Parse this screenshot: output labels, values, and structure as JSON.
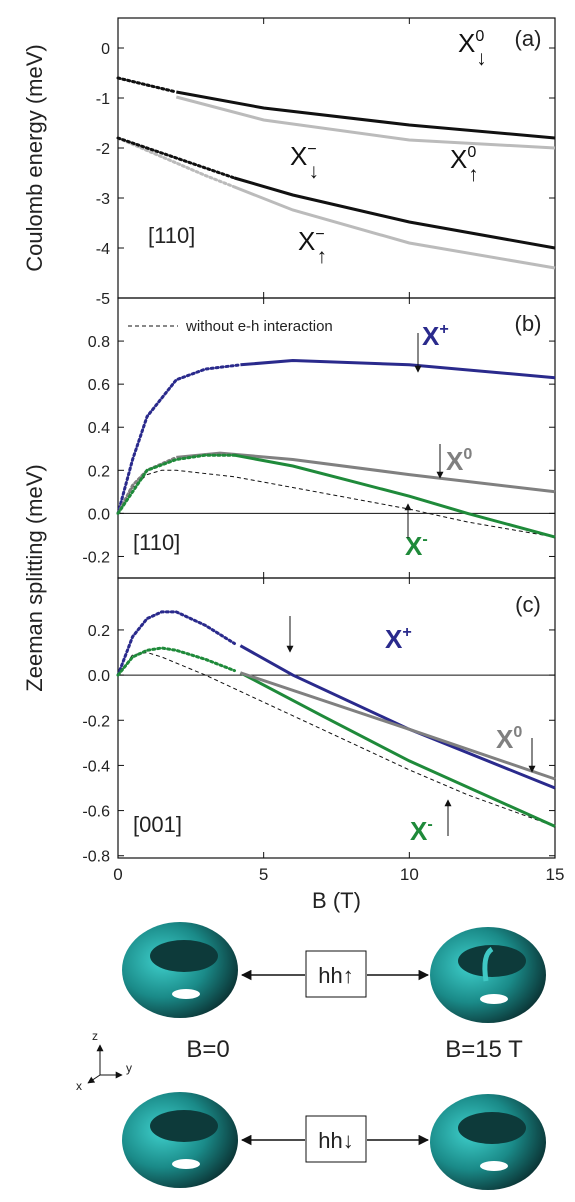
{
  "chart_data": [
    {
      "type": "line",
      "ylabel": "Coulomb energy (meV)",
      "panel_label": "(a)",
      "direction": "[110]",
      "xlim": [
        0,
        15
      ],
      "xticks": [
        0,
        5,
        10,
        15
      ],
      "show_xtick_labels": false,
      "ylim": [
        -5,
        0.6
      ],
      "yticks": [
        0,
        -1,
        -2,
        -3,
        -4,
        -5
      ],
      "series": [
        {
          "color": "#bbbbbb",
          "dash": "dot",
          "x": [
            0,
            1,
            2
          ],
          "values": [
            -0.6,
            -0.74,
            -0.88
          ]
        },
        {
          "color": "#bbbbbb",
          "dash": "solid",
          "x": [
            2,
            5,
            10,
            15
          ],
          "values": [
            -0.98,
            -1.44,
            -1.84,
            -2.0
          ]
        },
        {
          "color": "#111111",
          "dash": "dot",
          "x": [
            0,
            1,
            2
          ],
          "values": [
            -0.6,
            -0.74,
            -0.88
          ]
        },
        {
          "color": "#111111",
          "dash": "solid",
          "x": [
            2,
            5,
            10,
            15
          ],
          "values": [
            -0.88,
            -1.2,
            -1.54,
            -1.8
          ]
        },
        {
          "color": "#bbbbbb",
          "dash": "dot",
          "x": [
            0,
            1,
            2,
            3,
            4
          ],
          "values": [
            -1.8,
            -2.05,
            -2.3,
            -2.55,
            -2.78
          ]
        },
        {
          "color": "#bbbbbb",
          "dash": "solid",
          "x": [
            4,
            6,
            10,
            15
          ],
          "values": [
            -2.78,
            -3.24,
            -3.9,
            -4.4
          ]
        },
        {
          "color": "#111111",
          "dash": "dot",
          "x": [
            0,
            1,
            2,
            3,
            4
          ],
          "values": [
            -1.8,
            -2.0,
            -2.2,
            -2.4,
            -2.6
          ]
        },
        {
          "color": "#111111",
          "dash": "solid",
          "x": [
            4,
            6,
            10,
            15
          ],
          "values": [
            -2.6,
            -2.94,
            -3.48,
            -4.0
          ]
        }
      ],
      "annotations": [
        {
          "text": "X",
          "sup": "0",
          "sub": "↓",
          "color": "#111111"
        },
        {
          "text": "X",
          "sup": "−",
          "sub": "↓",
          "color": "#111111"
        },
        {
          "text": "X",
          "sup": "0",
          "sub": "↑",
          "color": "#111111"
        },
        {
          "text": "X",
          "sup": "−",
          "sub": "↑",
          "color": "#111111"
        }
      ]
    },
    {
      "type": "line",
      "ylabel": "Zeeman splitting (meV)",
      "panel_label": "(b)",
      "direction": "[110]",
      "xlim": [
        0,
        15
      ],
      "xticks": [
        0,
        5,
        10,
        15
      ],
      "show_xtick_labels": false,
      "ylim": [
        -0.3,
        1.0
      ],
      "yticks": [
        0.8,
        0.6,
        0.4,
        0.2,
        {
          "value": 0,
          "label": "0.0"
        },
        -0.2
      ],
      "hline": 0,
      "series": [
        {
          "name": "without e-h interaction",
          "color": "#111111",
          "dash": "dash",
          "x": [
            0,
            0.5,
            1,
            1.5,
            2,
            4,
            6,
            8,
            10,
            12,
            15
          ],
          "values": [
            0,
            0.12,
            0.18,
            0.2,
            0.2,
            0.17,
            0.12,
            0.07,
            0.02,
            -0.04,
            -0.11
          ]
        },
        {
          "color": "#2a2a8c",
          "dash": "dot",
          "x": [
            0,
            0.5,
            1,
            2,
            3,
            4.2
          ],
          "values": [
            0,
            0.25,
            0.45,
            0.62,
            0.67,
            0.69
          ]
        },
        {
          "color": "#2a2a8c",
          "dash": "solid",
          "x": [
            4.2,
            6,
            10,
            15
          ],
          "values": [
            0.69,
            0.71,
            0.69,
            0.63
          ]
        },
        {
          "color": "#808080",
          "dash": "dot",
          "x": [
            0,
            0.5,
            1,
            2
          ],
          "values": [
            0,
            0.13,
            0.2,
            0.26
          ]
        },
        {
          "color": "#808080",
          "dash": "solid",
          "x": [
            2,
            3.5,
            6,
            10,
            15
          ],
          "values": [
            0.26,
            0.28,
            0.25,
            0.18,
            0.1
          ]
        },
        {
          "color": "#1f8a3a",
          "dash": "dot",
          "x": [
            0,
            1,
            2,
            3,
            4
          ],
          "values": [
            0,
            0.2,
            0.25,
            0.27,
            0.27
          ]
        },
        {
          "color": "#1f8a3a",
          "dash": "solid",
          "x": [
            4,
            6,
            8,
            10,
            12,
            15
          ],
          "values": [
            0.27,
            0.22,
            0.15,
            0.08,
            0,
            -0.11
          ]
        }
      ],
      "annotations": [
        {
          "text": "X",
          "sup": "+",
          "color": "#2a2a8c"
        },
        {
          "text": "X",
          "sup": "0",
          "color": "#808080"
        },
        {
          "text": "X",
          "sup": "-",
          "color": "#1f8a3a"
        }
      ]
    },
    {
      "type": "line",
      "panel_label": "(c)",
      "direction": "[001]",
      "xlabel": "B (T)",
      "xlim": [
        0,
        15
      ],
      "xticks": [
        0,
        5,
        10,
        15
      ],
      "show_xtick_labels": true,
      "ylim": [
        -0.81,
        0.43
      ],
      "yticks": [
        0.2,
        {
          "value": 0,
          "label": "0.0"
        },
        -0.2,
        -0.4,
        -0.6,
        -0.8
      ],
      "hline": 0,
      "series": [
        {
          "color": "#111111",
          "dash": "dash",
          "x": [
            0,
            0.5,
            1,
            1.5,
            3,
            5,
            8,
            10,
            12,
            15
          ],
          "values": [
            0,
            0.09,
            0.1,
            0.08,
            0,
            -0.12,
            -0.3,
            -0.42,
            -0.53,
            -0.67
          ]
        },
        {
          "color": "#2a2a8c",
          "dash": "dot",
          "x": [
            0,
            0.5,
            1,
            1.5,
            2,
            3,
            4
          ],
          "values": [
            0,
            0.17,
            0.25,
            0.28,
            0.28,
            0.22,
            0.14
          ]
        },
        {
          "color": "#2a2a8c",
          "dash": "solid",
          "x": [
            4.2,
            6,
            10,
            15
          ],
          "values": [
            0.13,
            0,
            -0.24,
            -0.5
          ]
        },
        {
          "color": "#1f8a3a",
          "dash": "dot",
          "x": [
            0,
            0.5,
            1,
            1.5,
            2,
            3,
            4
          ],
          "values": [
            0,
            0.08,
            0.11,
            0.12,
            0.11,
            0.07,
            0.02
          ]
        },
        {
          "color": "#1f8a3a",
          "dash": "solid",
          "x": [
            4.2,
            7,
            10,
            15
          ],
          "values": [
            0.01,
            -0.18,
            -0.38,
            -0.67
          ]
        },
        {
          "color": "#808080",
          "dash": "solid",
          "x": [
            4.2,
            10,
            15
          ],
          "values": [
            0.01,
            -0.24,
            -0.46
          ]
        }
      ],
      "annotations": [
        {
          "text": "X",
          "sup": "+",
          "color": "#2a2a8c"
        },
        {
          "text": "X",
          "sup": "0",
          "color": "#808080"
        },
        {
          "text": "X",
          "sup": "-",
          "color": "#1f8a3a"
        }
      ]
    }
  ],
  "diagram": {
    "up_state": "hh↑",
    "down_state": "hh↓",
    "left_field": "B=0",
    "right_field": "B=15 T",
    "axes": {
      "z": "z",
      "y": "y",
      "x": "x"
    }
  }
}
